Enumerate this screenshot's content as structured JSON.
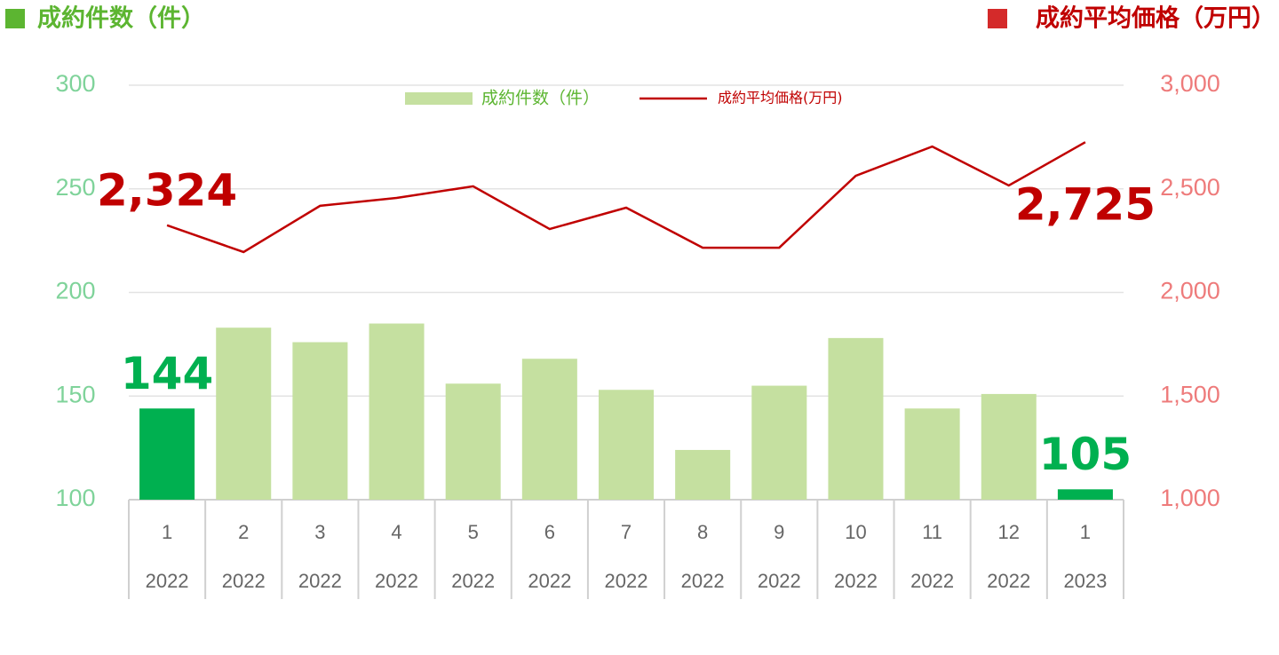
{
  "chart_data": {
    "type": "bar-line",
    "y_label": "成約件数（件）",
    "y2_label": "成約平均価格（万円）",
    "categories": [
      "1",
      "2",
      "3",
      "4",
      "5",
      "6",
      "7",
      "8",
      "9",
      "10",
      "11",
      "12",
      "1"
    ],
    "category_years": [
      "2022",
      "2022",
      "2022",
      "2022",
      "2022",
      "2022",
      "2022",
      "2022",
      "2022",
      "2022",
      "2022",
      "2022",
      "2023"
    ],
    "ylim": [
      100,
      300
    ],
    "yticks": [
      100,
      150,
      200,
      250,
      300
    ],
    "y2lim": [
      1000,
      3000
    ],
    "y2ticks": [
      {
        "value": 1000,
        "label": "1,000"
      },
      {
        "value": 1500,
        "label": "1,500"
      },
      {
        "value": 2000,
        "label": "2,000"
      },
      {
        "value": 2500,
        "label": "2,500"
      },
      {
        "value": 3000,
        "label": "3,000"
      }
    ],
    "grid": true,
    "legend": "top",
    "series": [
      {
        "name": "成約件数（件）",
        "type": "bar",
        "color": "#c5e0a0",
        "colors": [
          "#00b050",
          "#c5e0a0",
          "#c5e0a0",
          "#c5e0a0",
          "#c5e0a0",
          "#c5e0a0",
          "#c5e0a0",
          "#c5e0a0",
          "#c5e0a0",
          "#c5e0a0",
          "#c5e0a0",
          "#c5e0a0",
          "#00b050"
        ],
        "values": [
          144,
          183,
          176,
          185,
          156,
          168,
          153,
          124,
          155,
          178,
          144,
          151,
          105
        ],
        "value_labels": [
          "144",
          null,
          null,
          null,
          null,
          null,
          null,
          null,
          null,
          null,
          null,
          null,
          "105"
        ],
        "label_color": "#00b050"
      },
      {
        "name": "成約平均価格(万円)",
        "type": "line",
        "axis": "y2",
        "color": "#c00000",
        "values": [
          2324,
          2195,
          2418,
          2456,
          2512,
          2306,
          2409,
          2216,
          2216,
          2563,
          2704,
          2516,
          2725
        ],
        "value_labels": [
          "2,324",
          null,
          null,
          null,
          null,
          null,
          null,
          null,
          null,
          null,
          null,
          null,
          "2,725"
        ],
        "label_color": "#c00000"
      }
    ]
  }
}
